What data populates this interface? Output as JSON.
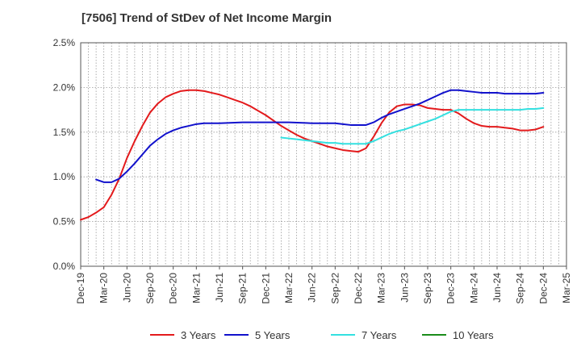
{
  "chart_data": {
    "type": "line",
    "title": "[7506]  Trend of StDev of Net Income Margin",
    "xlabel": "",
    "ylabel": "",
    "x_ticks": [
      "Dec-19",
      "Mar-20",
      "Jun-20",
      "Sep-20",
      "Dec-20",
      "Mar-21",
      "Jun-21",
      "Sep-21",
      "Dec-21",
      "Mar-22",
      "Jun-22",
      "Sep-22",
      "Dec-22",
      "Mar-23",
      "Jun-23",
      "Sep-23",
      "Dec-23",
      "Mar-24",
      "Jun-24",
      "Sep-24",
      "Dec-24",
      "Mar-25"
    ],
    "y_ticks": [
      "0.0%",
      "0.5%",
      "1.0%",
      "1.5%",
      "2.0%",
      "2.5%"
    ],
    "ylim": [
      0,
      2.5
    ],
    "y_unit": "%",
    "grid": true,
    "legend_position": "bottom",
    "series": [
      {
        "name": "3 Years",
        "color": "#e31a1c",
        "points": [
          [
            "Dec-19",
            0.52
          ],
          [
            "Jan-20",
            0.55
          ],
          [
            "Feb-20",
            0.6
          ],
          [
            "Mar-20",
            0.66
          ],
          [
            "Apr-20",
            0.8
          ],
          [
            "May-20",
            0.98
          ],
          [
            "Jun-20",
            1.21
          ],
          [
            "Jul-20",
            1.4
          ],
          [
            "Aug-20",
            1.57
          ],
          [
            "Sep-20",
            1.72
          ],
          [
            "Oct-20",
            1.82
          ],
          [
            "Nov-20",
            1.89
          ],
          [
            "Dec-20",
            1.93
          ],
          [
            "Jan-21",
            1.96
          ],
          [
            "Feb-21",
            1.97
          ],
          [
            "Mar-21",
            1.97
          ],
          [
            "Apr-21",
            1.96
          ],
          [
            "May-21",
            1.94
          ],
          [
            "Jun-21",
            1.92
          ],
          [
            "Jul-21",
            1.89
          ],
          [
            "Aug-21",
            1.86
          ],
          [
            "Sep-21",
            1.83
          ],
          [
            "Oct-21",
            1.79
          ],
          [
            "Nov-21",
            1.74
          ],
          [
            "Dec-21",
            1.69
          ],
          [
            "Jan-22",
            1.63
          ],
          [
            "Feb-22",
            1.57
          ],
          [
            "Mar-22",
            1.52
          ],
          [
            "Apr-22",
            1.47
          ],
          [
            "May-22",
            1.43
          ],
          [
            "Jun-22",
            1.4
          ],
          [
            "Jul-22",
            1.37
          ],
          [
            "Aug-22",
            1.34
          ],
          [
            "Sep-22",
            1.32
          ],
          [
            "Oct-22",
            1.3
          ],
          [
            "Nov-22",
            1.29
          ],
          [
            "Dec-22",
            1.28
          ],
          [
            "Jan-23",
            1.32
          ],
          [
            "Feb-23",
            1.45
          ],
          [
            "Mar-23",
            1.6
          ],
          [
            "Apr-23",
            1.72
          ],
          [
            "May-23",
            1.79
          ],
          [
            "Jun-23",
            1.81
          ],
          [
            "Jul-23",
            1.81
          ],
          [
            "Aug-23",
            1.8
          ],
          [
            "Sep-23",
            1.77
          ],
          [
            "Oct-23",
            1.76
          ],
          [
            "Nov-23",
            1.75
          ],
          [
            "Dec-23",
            1.75
          ],
          [
            "Jan-24",
            1.71
          ],
          [
            "Feb-24",
            1.65
          ],
          [
            "Mar-24",
            1.6
          ],
          [
            "Apr-24",
            1.57
          ],
          [
            "May-24",
            1.56
          ],
          [
            "Jun-24",
            1.56
          ],
          [
            "Jul-24",
            1.55
          ],
          [
            "Aug-24",
            1.54
          ],
          [
            "Sep-24",
            1.52
          ],
          [
            "Oct-24",
            1.52
          ],
          [
            "Nov-24",
            1.53
          ],
          [
            "Dec-24",
            1.56
          ]
        ]
      },
      {
        "name": "5 Years",
        "color": "#1111cc",
        "points": [
          [
            "Feb-20",
            0.97
          ],
          [
            "Mar-20",
            0.94
          ],
          [
            "Apr-20",
            0.94
          ],
          [
            "May-20",
            0.98
          ],
          [
            "Jun-20",
            1.06
          ],
          [
            "Jul-20",
            1.15
          ],
          [
            "Aug-20",
            1.25
          ],
          [
            "Sep-20",
            1.35
          ],
          [
            "Oct-20",
            1.42
          ],
          [
            "Nov-20",
            1.48
          ],
          [
            "Dec-20",
            1.52
          ],
          [
            "Jan-21",
            1.55
          ],
          [
            "Feb-21",
            1.57
          ],
          [
            "Mar-21",
            1.59
          ],
          [
            "Apr-21",
            1.6
          ],
          [
            "May-21",
            1.6
          ],
          [
            "Jun-21",
            1.6
          ],
          [
            "Sep-21",
            1.61
          ],
          [
            "Dec-21",
            1.61
          ],
          [
            "Mar-22",
            1.61
          ],
          [
            "Jun-22",
            1.6
          ],
          [
            "Sep-22",
            1.6
          ],
          [
            "Oct-22",
            1.59
          ],
          [
            "Nov-22",
            1.58
          ],
          [
            "Dec-22",
            1.58
          ],
          [
            "Jan-23",
            1.58
          ],
          [
            "Feb-23",
            1.61
          ],
          [
            "Mar-23",
            1.66
          ],
          [
            "Apr-23",
            1.7
          ],
          [
            "May-23",
            1.73
          ],
          [
            "Jun-23",
            1.76
          ],
          [
            "Jul-23",
            1.79
          ],
          [
            "Aug-23",
            1.82
          ],
          [
            "Sep-23",
            1.86
          ],
          [
            "Oct-23",
            1.9
          ],
          [
            "Nov-23",
            1.94
          ],
          [
            "Dec-23",
            1.97
          ],
          [
            "Jan-24",
            1.97
          ],
          [
            "Feb-24",
            1.96
          ],
          [
            "Mar-24",
            1.95
          ],
          [
            "Apr-24",
            1.94
          ],
          [
            "May-24",
            1.94
          ],
          [
            "Jun-24",
            1.94
          ],
          [
            "Jul-24",
            1.93
          ],
          [
            "Aug-24",
            1.93
          ],
          [
            "Sep-24",
            1.93
          ],
          [
            "Oct-24",
            1.93
          ],
          [
            "Nov-24",
            1.93
          ],
          [
            "Dec-24",
            1.94
          ]
        ]
      },
      {
        "name": "7 Years",
        "color": "#33e0e0",
        "points": [
          [
            "Feb-22",
            1.44
          ],
          [
            "Mar-22",
            1.43
          ],
          [
            "Apr-22",
            1.42
          ],
          [
            "May-22",
            1.41
          ],
          [
            "Jun-22",
            1.4
          ],
          [
            "Jul-22",
            1.39
          ],
          [
            "Aug-22",
            1.38
          ],
          [
            "Sep-22",
            1.38
          ],
          [
            "Oct-22",
            1.37
          ],
          [
            "Nov-22",
            1.37
          ],
          [
            "Dec-22",
            1.37
          ],
          [
            "Jan-23",
            1.37
          ],
          [
            "Feb-23",
            1.4
          ],
          [
            "Mar-23",
            1.44
          ],
          [
            "Apr-23",
            1.48
          ],
          [
            "May-23",
            1.51
          ],
          [
            "Jun-23",
            1.53
          ],
          [
            "Jul-23",
            1.56
          ],
          [
            "Aug-23",
            1.59
          ],
          [
            "Sep-23",
            1.62
          ],
          [
            "Oct-23",
            1.65
          ],
          [
            "Nov-23",
            1.69
          ],
          [
            "Dec-23",
            1.73
          ],
          [
            "Jan-24",
            1.75
          ],
          [
            "Feb-24",
            1.75
          ],
          [
            "Mar-24",
            1.75
          ],
          [
            "Jun-24",
            1.75
          ],
          [
            "Sep-24",
            1.75
          ],
          [
            "Oct-24",
            1.76
          ],
          [
            "Nov-24",
            1.76
          ],
          [
            "Dec-24",
            1.77
          ]
        ]
      },
      {
        "name": "10 Years",
        "color": "#1a8c1a",
        "points": []
      }
    ]
  }
}
